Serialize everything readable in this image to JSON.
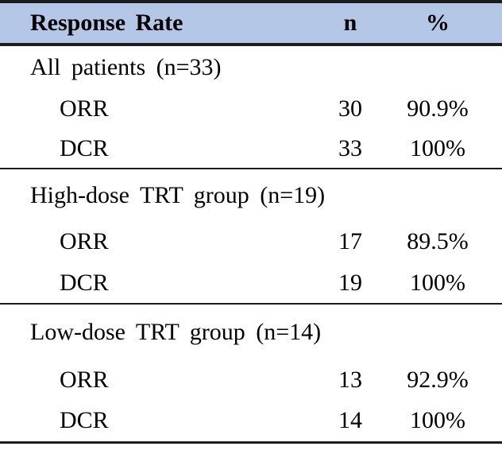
{
  "table": {
    "header": {
      "label": "Response Rate",
      "n": "n",
      "pct": "%"
    },
    "sections": [
      {
        "title": "All patients (n=33)",
        "rows": [
          {
            "label": "ORR",
            "n": "30",
            "pct": "90.9%"
          },
          {
            "label": "DCR",
            "n": "33",
            "pct": "100%"
          }
        ]
      },
      {
        "title": "High-dose TRT group (n=19)",
        "rows": [
          {
            "label": "ORR",
            "n": "17",
            "pct": "89.5%"
          },
          {
            "label": "DCR",
            "n": "19",
            "pct": "100%"
          }
        ]
      },
      {
        "title": "Low-dose TRT group (n=14)",
        "rows": [
          {
            "label": "ORR",
            "n": "13",
            "pct": "92.9%"
          },
          {
            "label": "DCR",
            "n": "14",
            "pct": "100%"
          }
        ]
      }
    ],
    "colors": {
      "header_bg": "#b5c7e7",
      "rule": "#1c1c1c"
    }
  }
}
